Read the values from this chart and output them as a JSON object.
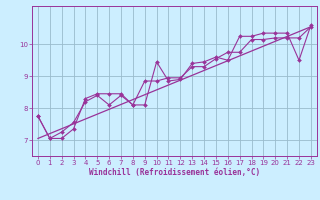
{
  "xlabel": "Windchill (Refroidissement éolien,°C)",
  "ylabel": "",
  "xlim": [
    -0.5,
    23.5
  ],
  "ylim": [
    6.5,
    11.2
  ],
  "xticks": [
    0,
    1,
    2,
    3,
    4,
    5,
    6,
    7,
    8,
    9,
    10,
    11,
    12,
    13,
    14,
    15,
    16,
    17,
    18,
    19,
    20,
    21,
    22,
    23
  ],
  "yticks": [
    7,
    8,
    9,
    10
  ],
  "background_color": "#cceeff",
  "grid_color": "#99bbcc",
  "line_color": "#993399",
  "line1_x": [
    0,
    1,
    2,
    3,
    4,
    5,
    6,
    7,
    8,
    9,
    10,
    11,
    12,
    13,
    14,
    15,
    16,
    17,
    18,
    19,
    20,
    21,
    22,
    23
  ],
  "line1_y": [
    7.75,
    7.05,
    7.05,
    7.35,
    8.3,
    8.45,
    8.45,
    8.45,
    8.1,
    8.1,
    9.45,
    8.85,
    8.9,
    9.4,
    9.45,
    9.6,
    9.5,
    10.25,
    10.25,
    10.35,
    10.35,
    10.35,
    9.5,
    10.6
  ],
  "line2_x": [
    0,
    1,
    2,
    3,
    4,
    5,
    6,
    7,
    8,
    9,
    10,
    11,
    12,
    13,
    14,
    15,
    16,
    17,
    18,
    19,
    20,
    21,
    22,
    23
  ],
  "line2_y": [
    7.75,
    7.05,
    7.25,
    7.55,
    8.2,
    8.4,
    8.1,
    8.4,
    8.1,
    8.85,
    8.85,
    8.95,
    8.95,
    9.3,
    9.3,
    9.55,
    9.75,
    9.75,
    10.15,
    10.15,
    10.2,
    10.2,
    10.2,
    10.55
  ],
  "line3_x": [
    0,
    23
  ],
  "line3_y": [
    7.05,
    10.55
  ],
  "fig_width": 3.2,
  "fig_height": 2.0,
  "dpi": 100
}
